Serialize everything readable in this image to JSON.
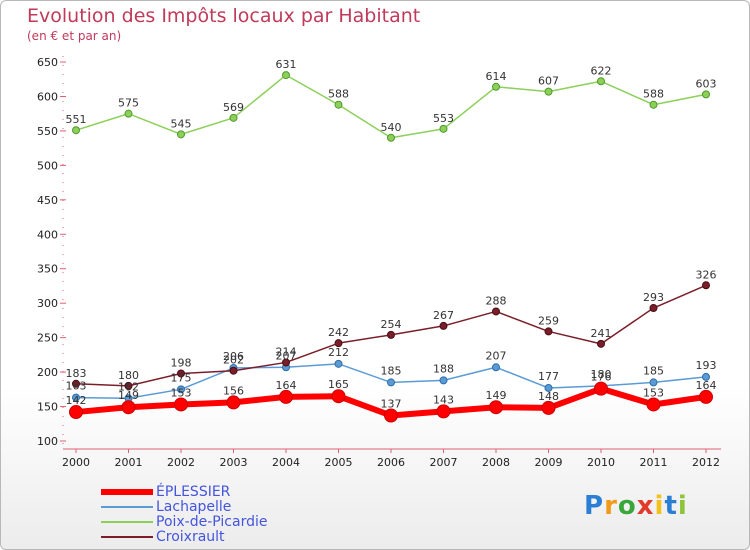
{
  "header": {
    "title": "Evolution des Impôts locaux par Habitant",
    "subtitle": "(en € et par an)"
  },
  "logo": {
    "text": "Proxiti"
  },
  "chart_data": {
    "type": "line",
    "title": "Evolution des Impôts locaux par Habitant",
    "subtitle": "(en € et par an)",
    "xlabel": "",
    "ylabel": "",
    "x": [
      "2000",
      "2001",
      "2002",
      "2003",
      "2004",
      "2005",
      "2006",
      "2007",
      "2008",
      "2009",
      "2010",
      "2011",
      "2012"
    ],
    "ylim": [
      100,
      650
    ],
    "yticks": [
      "100",
      "150",
      "200",
      "250",
      "300",
      "350",
      "400",
      "450",
      "500",
      "550",
      "600",
      "650"
    ],
    "grid": false,
    "legend_position": "bottom-left",
    "series": [
      {
        "name": "ÉPLESSIER",
        "color": "#ff0000",
        "values": [
          142,
          149,
          153,
          156,
          164,
          165,
          137,
          143,
          149,
          148,
          176,
          153,
          164
        ]
      },
      {
        "name": "Lachapelle",
        "color": "#5b9bd5",
        "values": [
          163,
          162,
          175,
          206,
          207,
          212,
          185,
          188,
          207,
          177,
          180,
          185,
          193
        ]
      },
      {
        "name": "Poix-de-Picardie",
        "color": "#8cd05a",
        "values": [
          551,
          575,
          545,
          569,
          631,
          588,
          540,
          553,
          614,
          607,
          622,
          588,
          603
        ]
      },
      {
        "name": "Croixrault",
        "color": "#7a1f2a",
        "values": [
          183,
          180,
          198,
          202,
          214,
          242,
          254,
          267,
          288,
          259,
          241,
          293,
          326
        ]
      }
    ]
  }
}
